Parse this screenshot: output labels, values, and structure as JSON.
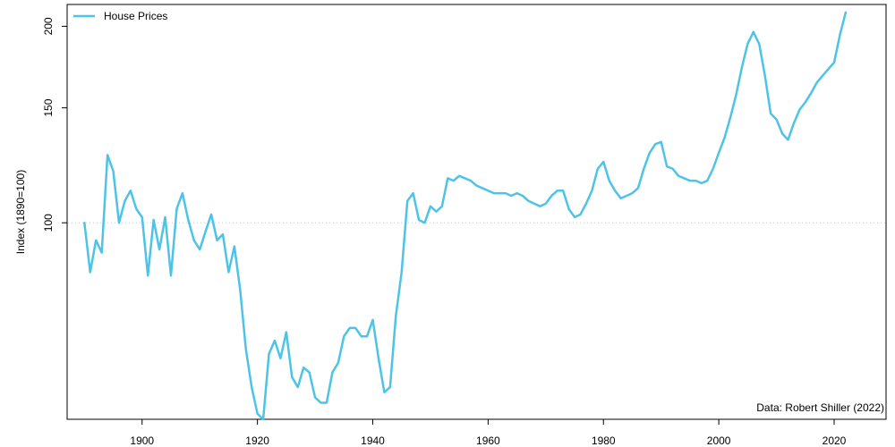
{
  "chart_data": {
    "type": "line",
    "title": "",
    "xlabel": "",
    "ylabel": "Index (1890=100)",
    "annotation": "Data: Robert Shiller (2022)",
    "legend": {
      "position": "top-left",
      "entries": [
        "House Prices"
      ]
    },
    "reference_line": {
      "y": 100,
      "style": "dotted",
      "color": "#c8c8c8"
    },
    "xlim": [
      1887,
      2029
    ],
    "ylim": [
      50,
      216
    ],
    "y_scale": "log",
    "xticks": [
      "1900",
      "1920",
      "1940",
      "1960",
      "1980",
      "2000",
      "2020"
    ],
    "yticks": [
      "100",
      "150",
      "200"
    ],
    "series": [
      {
        "name": "House Prices",
        "color": "#4dc3e8",
        "x": [
          1890,
          1891,
          1892,
          1893,
          1894,
          1895,
          1896,
          1897,
          1898,
          1899,
          1900,
          1901,
          1902,
          1903,
          1904,
          1905,
          1906,
          1907,
          1908,
          1909,
          1910,
          1911,
          1912,
          1913,
          1914,
          1915,
          1916,
          1917,
          1918,
          1919,
          1920,
          1921,
          1922,
          1923,
          1924,
          1925,
          1926,
          1927,
          1928,
          1929,
          1930,
          1931,
          1932,
          1933,
          1934,
          1935,
          1936,
          1937,
          1938,
          1939,
          1940,
          1941,
          1942,
          1943,
          1944,
          1945,
          1946,
          1947,
          1948,
          1949,
          1950,
          1951,
          1952,
          1953,
          1954,
          1955,
          1956,
          1957,
          1958,
          1959,
          1960,
          1961,
          1962,
          1963,
          1964,
          1965,
          1966,
          1967,
          1968,
          1969,
          1970,
          1971,
          1972,
          1973,
          1974,
          1975,
          1976,
          1977,
          1978,
          1979,
          1980,
          1981,
          1982,
          1983,
          1984,
          1985,
          1986,
          1987,
          1988,
          1989,
          1990,
          1991,
          1992,
          1993,
          1994,
          1995,
          1996,
          1997,
          1998,
          1999,
          2000,
          2001,
          2002,
          2003,
          2004,
          2005,
          2006,
          2007,
          2008,
          2009,
          2010,
          2011,
          2012,
          2013,
          2014,
          2015,
          2016,
          2017,
          2018,
          2019,
          2020,
          2021,
          2022
        ],
        "values": [
          100,
          84,
          94,
          90,
          127,
          120,
          100,
          108,
          112,
          105,
          102,
          83,
          101,
          91,
          102,
          83,
          105,
          111,
          101,
          94,
          91,
          97,
          103,
          94,
          96,
          84,
          92,
          79,
          64,
          56,
          51,
          50,
          63,
          66,
          62,
          68,
          58,
          56,
          60,
          59,
          54,
          53,
          53,
          59,
          61,
          67,
          69,
          69,
          67,
          67,
          71,
          62,
          55,
          56,
          72,
          84,
          108,
          111,
          101,
          100,
          106,
          104,
          106,
          117,
          116,
          118,
          117,
          116,
          114,
          113,
          112,
          111,
          111,
          111,
          110,
          111,
          110,
          108,
          107,
          106,
          107,
          110,
          112,
          112,
          105,
          102,
          103,
          107,
          112,
          121,
          124,
          116,
          112,
          109,
          110,
          111,
          113,
          121,
          128,
          132,
          133,
          122,
          121,
          118,
          117,
          116,
          116,
          115,
          116,
          121,
          128,
          135,
          145,
          157,
          173,
          188,
          196,
          188,
          168,
          147,
          144,
          137,
          134,
          142,
          149,
          153,
          158,
          164,
          168,
          172,
          176,
          194,
          210
        ]
      }
    ]
  }
}
